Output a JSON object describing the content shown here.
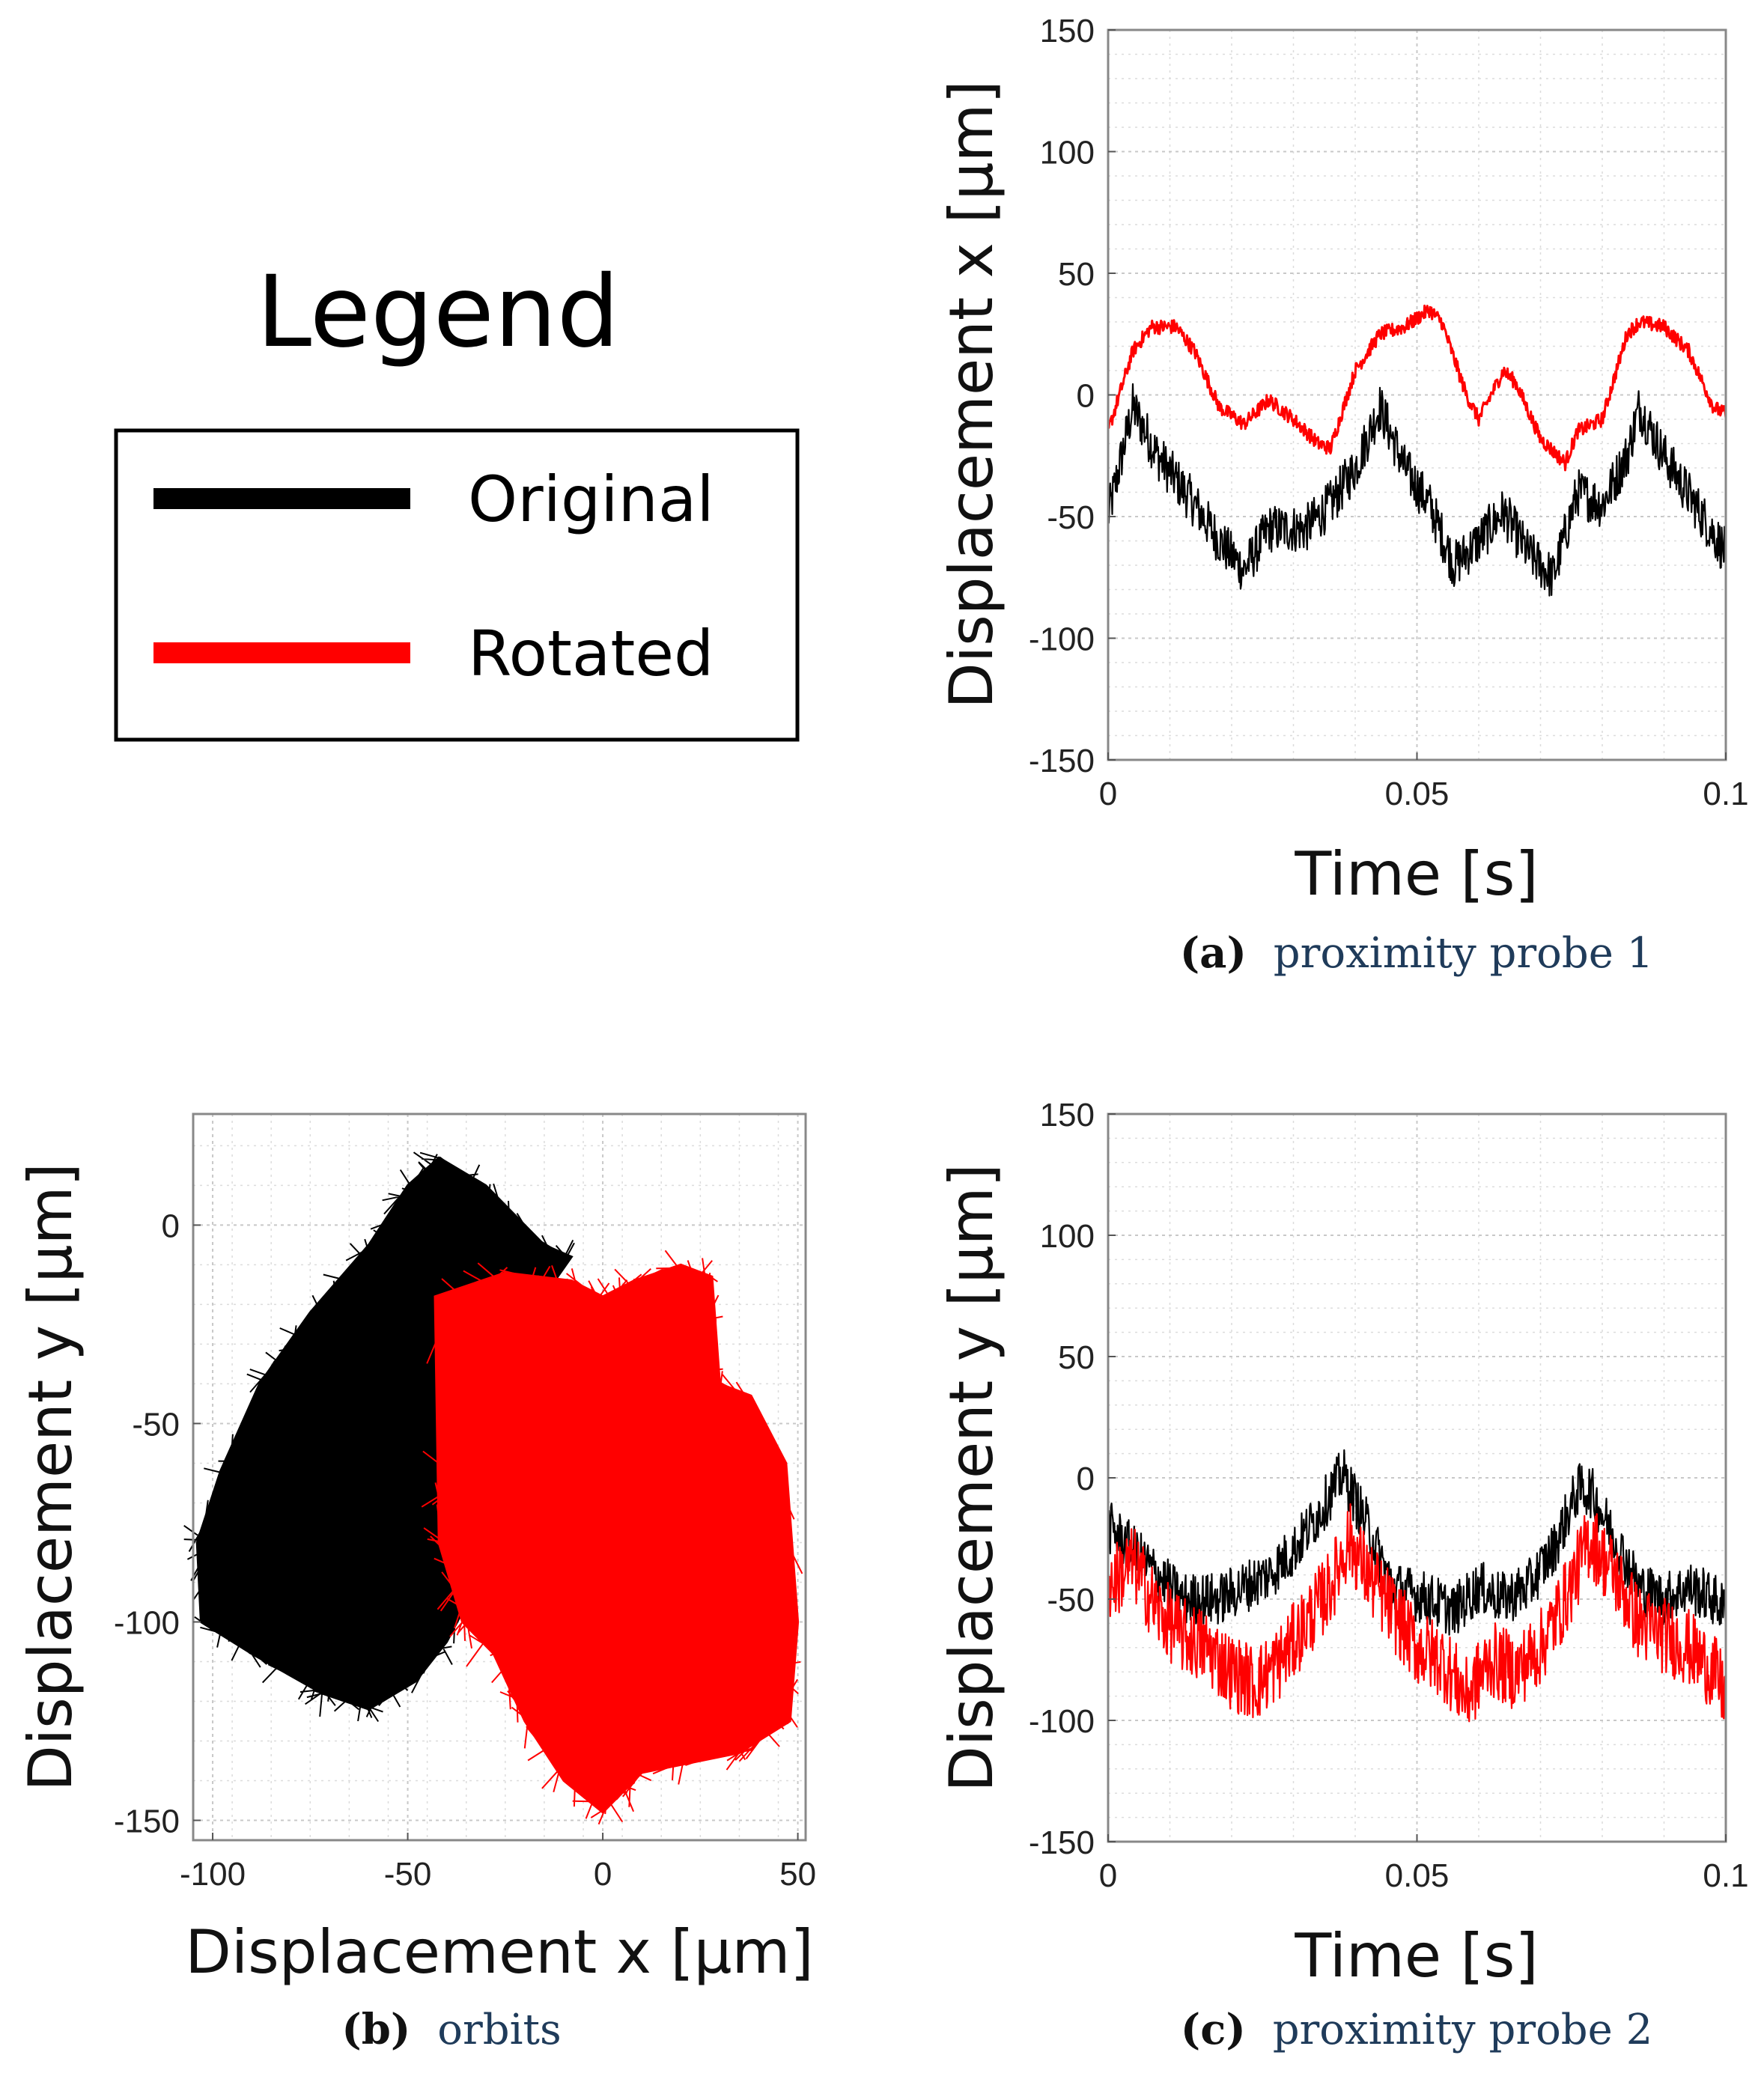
{
  "legend": {
    "title": "Legend",
    "entries": [
      {
        "label": "Original",
        "color": "#000000"
      },
      {
        "label": "Rotated",
        "color": "#ff0000"
      }
    ]
  },
  "colors": {
    "original": "#000000",
    "rotated": "#ff0000",
    "grid": "#c8c8c8",
    "caption": "#1f3b5a"
  },
  "chart_data": [
    {
      "id": "a",
      "type": "line",
      "caption_label": "(a)",
      "caption_text": "proximity probe 1",
      "xlabel": "Time [s]",
      "ylabel": "Displacement x [μm]",
      "xlim": [
        0,
        0.1
      ],
      "ylim": [
        -150,
        150
      ],
      "xticks": [
        0,
        0.05,
        0.1
      ],
      "xtick_labels": [
        "0",
        "0.05",
        "0.1"
      ],
      "yticks": [
        150,
        100,
        50,
        0,
        -50,
        -100,
        -150
      ],
      "ytick_labels": [
        "150",
        "100",
        "50",
        "0",
        "-50",
        "-100",
        "-150"
      ],
      "series": [
        {
          "name": "Original",
          "noise": 10,
          "points": [
            [
              0,
              -50
            ],
            [
              0.004,
              -5
            ],
            [
              0.008,
              -25
            ],
            [
              0.014,
              -45
            ],
            [
              0.018,
              -60
            ],
            [
              0.022,
              -72
            ],
            [
              0.026,
              -55
            ],
            [
              0.032,
              -55
            ],
            [
              0.036,
              -45
            ],
            [
              0.04,
              -30
            ],
            [
              0.044,
              -5
            ],
            [
              0.048,
              -30
            ],
            [
              0.052,
              -45
            ],
            [
              0.056,
              -70
            ],
            [
              0.06,
              -60
            ],
            [
              0.064,
              -48
            ],
            [
              0.068,
              -65
            ],
            [
              0.072,
              -75
            ],
            [
              0.076,
              -40
            ],
            [
              0.08,
              -45
            ],
            [
              0.084,
              -25
            ],
            [
              0.086,
              -5
            ],
            [
              0.09,
              -25
            ],
            [
              0.095,
              -45
            ],
            [
              0.1,
              -65
            ]
          ]
        },
        {
          "name": "Rotated",
          "noise": 3,
          "points": [
            [
              0,
              -15
            ],
            [
              0.004,
              18
            ],
            [
              0.007,
              28
            ],
            [
              0.011,
              28
            ],
            [
              0.014,
              18
            ],
            [
              0.018,
              -5
            ],
            [
              0.022,
              -12
            ],
            [
              0.026,
              -2
            ],
            [
              0.03,
              -10
            ],
            [
              0.034,
              -20
            ],
            [
              0.036,
              -22
            ],
            [
              0.04,
              10
            ],
            [
              0.044,
              25
            ],
            [
              0.048,
              28
            ],
            [
              0.052,
              35
            ],
            [
              0.054,
              30
            ],
            [
              0.058,
              0
            ],
            [
              0.06,
              -10
            ],
            [
              0.064,
              10
            ],
            [
              0.066,
              5
            ],
            [
              0.07,
              -18
            ],
            [
              0.074,
              -28
            ],
            [
              0.076,
              -15
            ],
            [
              0.08,
              -10
            ],
            [
              0.084,
              25
            ],
            [
              0.086,
              30
            ],
            [
              0.09,
              28
            ],
            [
              0.094,
              18
            ],
            [
              0.098,
              -5
            ],
            [
              0.1,
              -8
            ]
          ]
        }
      ]
    },
    {
      "id": "b",
      "type": "scatter",
      "caption_label": "(b)",
      "caption_text": "orbits",
      "xlabel": "Displacement x [μm]",
      "ylabel": "Displacement y [μm]",
      "xlim": [
        -105,
        52
      ],
      "ylim": [
        -155,
        28
      ],
      "xticks": [
        -100,
        -50,
        0,
        50
      ],
      "xtick_labels": [
        "-100",
        "-50",
        "0",
        "50"
      ],
      "yticks": [
        0,
        -50,
        -100,
        -150
      ],
      "ytick_labels": [
        "0",
        "-50",
        "-100",
        "-150"
      ],
      "series": [
        {
          "name": "Original",
          "outline": [
            [
              -42,
              17
            ],
            [
              -30,
              10
            ],
            [
              -15,
              -5
            ],
            [
              -8,
              -8
            ],
            [
              -18,
              -22
            ],
            [
              -30,
              -40
            ],
            [
              -35,
              -70
            ],
            [
              -32,
              -90
            ],
            [
              -40,
              -105
            ],
            [
              -48,
              -115
            ],
            [
              -60,
              -122
            ],
            [
              -72,
              -118
            ],
            [
              -90,
              -108
            ],
            [
              -103,
              -100
            ],
            [
              -104,
              -80
            ],
            [
              -98,
              -62
            ],
            [
              -88,
              -40
            ],
            [
              -75,
              -22
            ],
            [
              -60,
              -5
            ],
            [
              -50,
              10
            ]
          ]
        },
        {
          "name": "Rotated",
          "outline": [
            [
              -43,
              -18
            ],
            [
              -25,
              -12
            ],
            [
              -8,
              -14
            ],
            [
              0,
              -18
            ],
            [
              8,
              -14
            ],
            [
              20,
              -10
            ],
            [
              28,
              -13
            ],
            [
              30,
              -40
            ],
            [
              38,
              -43
            ],
            [
              47,
              -60
            ],
            [
              50,
              -100
            ],
            [
              48,
              -125
            ],
            [
              35,
              -133
            ],
            [
              10,
              -138
            ],
            [
              0,
              -148
            ],
            [
              -10,
              -140
            ],
            [
              -20,
              -125
            ],
            [
              -28,
              -108
            ],
            [
              -36,
              -100
            ],
            [
              -42,
              -80
            ]
          ]
        }
      ]
    },
    {
      "id": "c",
      "type": "line",
      "caption_label": "(c)",
      "caption_text": "proximity probe 2",
      "xlabel": "Time [s]",
      "ylabel": "Displacement y [μm]",
      "xlim": [
        0,
        0.1
      ],
      "ylim": [
        -150,
        150
      ],
      "xticks": [
        0,
        0.05,
        0.1
      ],
      "xtick_labels": [
        "0",
        "0.05",
        "0.1"
      ],
      "yticks": [
        150,
        100,
        50,
        0,
        -50,
        -100,
        -150
      ],
      "ytick_labels": [
        "150",
        "100",
        "50",
        "0",
        "-50",
        "-100",
        "-150"
      ],
      "series": [
        {
          "name": "Original",
          "noise": 11,
          "points": [
            [
              0,
              -20
            ],
            [
              0.004,
              -30
            ],
            [
              0.008,
              -40
            ],
            [
              0.012,
              -50
            ],
            [
              0.018,
              -50
            ],
            [
              0.022,
              -45
            ],
            [
              0.026,
              -40
            ],
            [
              0.03,
              -30
            ],
            [
              0.034,
              -15
            ],
            [
              0.038,
              2
            ],
            [
              0.042,
              -20
            ],
            [
              0.046,
              -45
            ],
            [
              0.052,
              -50
            ],
            [
              0.056,
              -55
            ],
            [
              0.06,
              -45
            ],
            [
              0.064,
              -50
            ],
            [
              0.068,
              -45
            ],
            [
              0.072,
              -30
            ],
            [
              0.076,
              -5
            ],
            [
              0.078,
              -5
            ],
            [
              0.082,
              -25
            ],
            [
              0.086,
              -45
            ],
            [
              0.09,
              -50
            ],
            [
              0.094,
              -45
            ],
            [
              0.098,
              -50
            ],
            [
              0.1,
              -55
            ]
          ]
        },
        {
          "name": "Rotated",
          "noise": 16,
          "points": [
            [
              0,
              -45
            ],
            [
              0.004,
              -35
            ],
            [
              0.008,
              -55
            ],
            [
              0.012,
              -65
            ],
            [
              0.016,
              -70
            ],
            [
              0.02,
              -80
            ],
            [
              0.024,
              -85
            ],
            [
              0.028,
              -75
            ],
            [
              0.032,
              -60
            ],
            [
              0.036,
              -45
            ],
            [
              0.039,
              -25
            ],
            [
              0.042,
              -40
            ],
            [
              0.046,
              -55
            ],
            [
              0.05,
              -70
            ],
            [
              0.054,
              -75
            ],
            [
              0.058,
              -90
            ],
            [
              0.062,
              -75
            ],
            [
              0.066,
              -80
            ],
            [
              0.07,
              -70
            ],
            [
              0.074,
              -50
            ],
            [
              0.078,
              -25
            ],
            [
              0.082,
              -40
            ],
            [
              0.086,
              -60
            ],
            [
              0.09,
              -65
            ],
            [
              0.094,
              -70
            ],
            [
              0.098,
              -80
            ],
            [
              0.1,
              -90
            ]
          ]
        }
      ]
    }
  ]
}
